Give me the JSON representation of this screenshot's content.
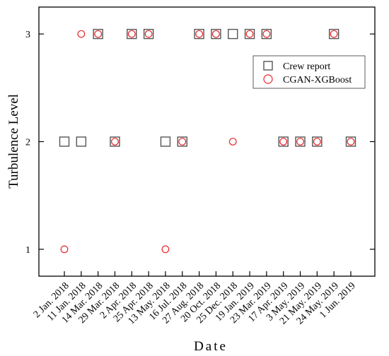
{
  "chart_data": {
    "type": "scatter",
    "title": "",
    "xlabel": "Date",
    "ylabel": "Turbulence Level",
    "categories": [
      "2 Jan. 2018",
      "11 Jan. 2018",
      "14 Mar. 2018",
      "29 Mar. 2018",
      "2 Apr. 2018",
      "25 Apr. 2018",
      "13 May. 2018",
      "16 Jul. 2018",
      "27 Aug. 2018",
      "20 Oct. 2018",
      "25 Dec. 2018",
      "19 Jan. 2019",
      "23 Mar. 2019",
      "17 Apr. 2019",
      "3 May. 2019",
      "21 May. 2019",
      "24 May. 2019",
      "1 Jun. 2019"
    ],
    "ylim": [
      0.75,
      3.25
    ],
    "yticks": [
      1,
      2,
      3
    ],
    "grid": false,
    "legend_position": "top-right",
    "series": [
      {
        "name": "Crew report",
        "marker": "square",
        "color": "#555555",
        "values": [
          2,
          2,
          3,
          2,
          3,
          3,
          2,
          2,
          3,
          3,
          3,
          3,
          3,
          2,
          2,
          2,
          3,
          2
        ]
      },
      {
        "name": "CGAN-XGBoost",
        "marker": "circle",
        "color": "#e8262a",
        "values": [
          1,
          3,
          3,
          2,
          3,
          3,
          1,
          2,
          3,
          3,
          2,
          3,
          3,
          2,
          2,
          2,
          3,
          2
        ]
      }
    ]
  }
}
